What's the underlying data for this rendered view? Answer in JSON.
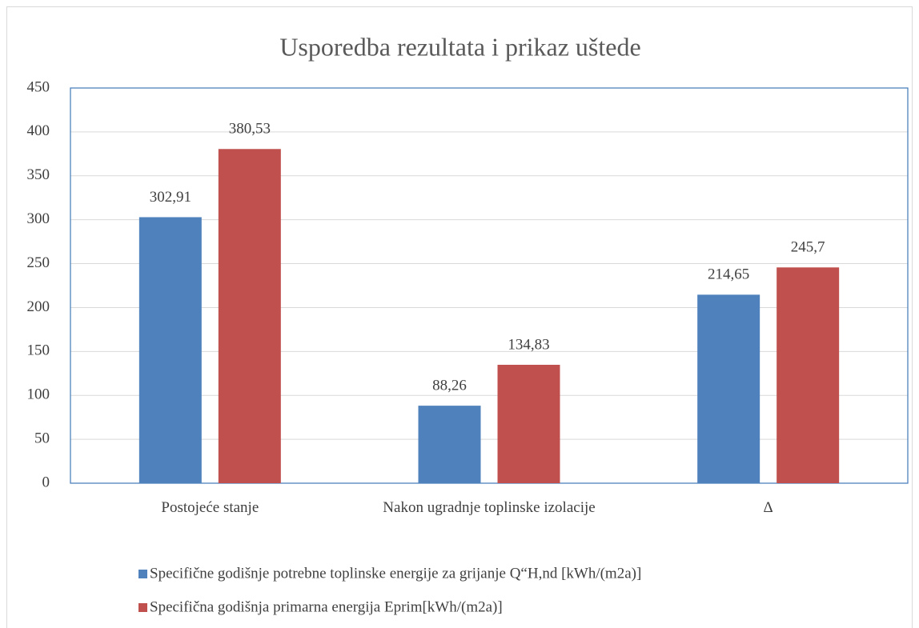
{
  "chart_data": {
    "type": "bar",
    "title": "Usporedba rezultata  i prikaz uštede",
    "categories": [
      "Postojeće stanje",
      "Nakon ugradnje toplinske izolacije",
      "Δ"
    ],
    "series": [
      {
        "name": "Specifične godišnje potrebne toplinske energije za grijanje Q“H,nd [kWh/(m2a)]",
        "color": "#4f81bd",
        "values": [
          302.91,
          88.26,
          214.65
        ],
        "value_labels": [
          "302,91",
          "88,26",
          "214,65"
        ]
      },
      {
        "name": "Specifična godišnja primarna energija Eprim[kWh/(m2a)]",
        "color": "#c0504d",
        "values": [
          380.53,
          134.83,
          245.7
        ],
        "value_labels": [
          "380,53",
          "134,83",
          "245,7"
        ]
      }
    ],
    "ylim": [
      0,
      450
    ],
    "yticks": [
      0,
      50,
      100,
      150,
      200,
      250,
      300,
      350,
      400,
      450
    ],
    "grid": true
  }
}
